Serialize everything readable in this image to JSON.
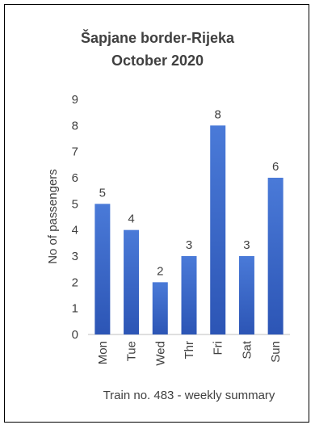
{
  "chart_data": {
    "type": "bar",
    "title_lines": [
      "Šapjane border-Rijeka",
      "October 2020"
    ],
    "categories": [
      "Mon",
      "Tue",
      "Wed",
      "Thr",
      "Fri",
      "Sat",
      "Sun"
    ],
    "values": [
      5,
      4,
      2,
      3,
      8,
      3,
      6
    ],
    "ylabel": "No of passengers",
    "xlabel": "Train no. 483 - weekly summary",
    "ylim": [
      0,
      9
    ],
    "yticks": [
      "0",
      "1",
      "2",
      "3",
      "4",
      "5",
      "6",
      "7",
      "8",
      "9"
    ],
    "grid": false,
    "legend": "none",
    "bar_color_top": "#4a7ad8",
    "bar_color_bottom": "#2c55b5",
    "text_color": "#404040",
    "axis_color": "#bfbfbf"
  }
}
